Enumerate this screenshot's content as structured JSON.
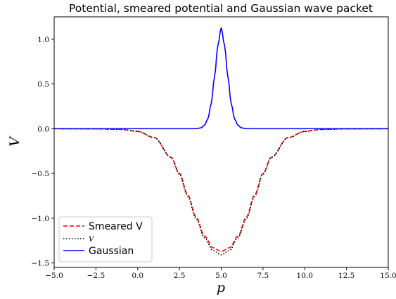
{
  "chart_data": {
    "type": "line",
    "title": "Potential, smeared potential and Gaussian wave packet",
    "xlabel": "p",
    "ylabel": "V",
    "xlim": [
      -5.0,
      15.0
    ],
    "ylim": [
      -1.55,
      1.25
    ],
    "xticks": [
      -5.0,
      -2.5,
      0.0,
      2.5,
      5.0,
      7.5,
      10.0,
      12.5,
      15.0
    ],
    "xtick_labels": [
      "−5.0",
      "−2.5",
      "0.0",
      "2.5",
      "5.0",
      "7.5",
      "10.0",
      "12.5",
      "15.0"
    ],
    "yticks": [
      -1.5,
      -1.0,
      -0.5,
      0.0,
      0.5,
      1.0
    ],
    "ytick_labels": [
      "−1.5",
      "−1.0",
      "−0.5",
      "0.0",
      "0.5",
      "1.0"
    ],
    "grid": false,
    "legend_position": "lower-left",
    "series": [
      {
        "name": "Smeared V",
        "color": "#ff0000",
        "style": "dashed",
        "x": [
          -5.0,
          -2.5,
          -1.0,
          0.0,
          1.0,
          2.0,
          2.5,
          3.0,
          3.5,
          4.0,
          4.5,
          5.0,
          5.5,
          6.0,
          6.5,
          7.0,
          7.5,
          8.0,
          9.0,
          10.0,
          11.0,
          12.5,
          15.0
        ],
        "y": [
          0.0,
          -0.002,
          -0.008,
          -0.03,
          -0.1,
          -0.32,
          -0.5,
          -0.74,
          -0.99,
          -1.2,
          -1.33,
          -1.37,
          -1.33,
          -1.2,
          -0.99,
          -0.74,
          -0.5,
          -0.32,
          -0.1,
          -0.03,
          -0.008,
          -0.002,
          0.0
        ]
      },
      {
        "name": "V",
        "color": "#000000",
        "style": "dotted",
        "x": [
          -5.0,
          -2.5,
          -1.0,
          0.0,
          1.0,
          2.0,
          2.5,
          3.0,
          3.5,
          4.0,
          4.5,
          5.0,
          5.5,
          6.0,
          6.5,
          7.0,
          7.5,
          8.0,
          9.0,
          10.0,
          11.0,
          12.5,
          15.0
        ],
        "y": [
          0.0,
          -0.002,
          -0.008,
          -0.03,
          -0.1,
          -0.32,
          -0.51,
          -0.76,
          -1.01,
          -1.22,
          -1.36,
          -1.41,
          -1.36,
          -1.22,
          -1.01,
          -0.76,
          -0.51,
          -0.32,
          -0.1,
          -0.03,
          -0.008,
          -0.002,
          0.0
        ]
      },
      {
        "name": "Gaussian",
        "color": "#0000ff",
        "style": "solid",
        "x": [
          -5.0,
          3.5,
          3.8,
          4.0,
          4.2,
          4.4,
          4.6,
          4.8,
          5.0,
          5.2,
          5.4,
          5.6,
          5.8,
          6.0,
          6.2,
          6.5,
          15.0
        ],
        "y": [
          0.0,
          0.0,
          0.01,
          0.04,
          0.11,
          0.28,
          0.58,
          0.93,
          1.13,
          0.93,
          0.58,
          0.28,
          0.11,
          0.04,
          0.01,
          0.0,
          0.0
        ]
      }
    ]
  }
}
